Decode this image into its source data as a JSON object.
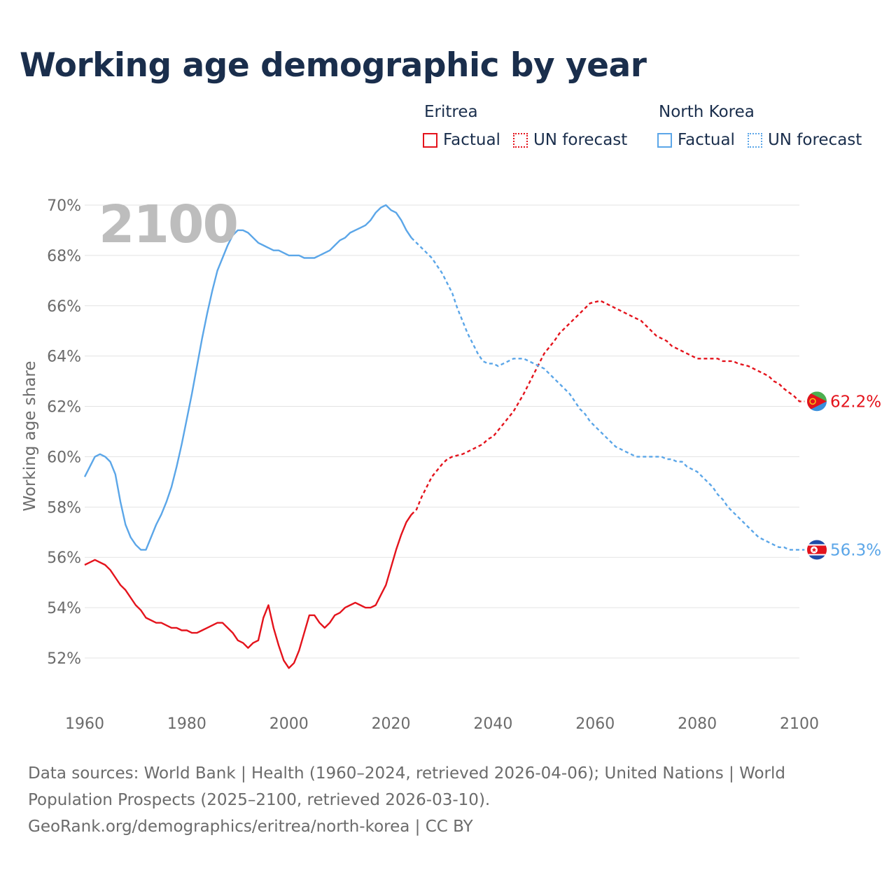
{
  "title": "Working age demographic by year",
  "year_overlay": "2100",
  "legend": [
    {
      "group": "Eritrea",
      "color": "#e4131c",
      "factual_label": "Factual",
      "forecast_label": "UN forecast"
    },
    {
      "group": "North Korea",
      "color": "#5ba6e8",
      "factual_label": "Factual",
      "forecast_label": "UN forecast"
    }
  ],
  "footer": {
    "sources": "Data sources: World Bank | Health (1960–2024, retrieved 2026-04-06); United Nations | World Population Prospects (2025–2100, retrieved 2026-03-10).",
    "credit": "GeoRank.org/demographics/eritrea/north-korea | CC BY"
  },
  "chart_data": {
    "type": "line",
    "title": "Working age demographic by year",
    "xlabel": "",
    "ylabel": "Working age share",
    "xlim": [
      1960,
      2100
    ],
    "ylim": [
      50.5,
      71
    ],
    "x_ticks": [
      1960,
      1980,
      2000,
      2020,
      2040,
      2060,
      2080,
      2100
    ],
    "y_ticks": [
      52,
      54,
      56,
      58,
      60,
      62,
      64,
      66,
      68,
      70
    ],
    "y_tick_labels": [
      "52%",
      "54%",
      "56%",
      "58%",
      "60%",
      "62%",
      "64%",
      "66%",
      "68%",
      "70%"
    ],
    "grid": "horizontal",
    "factual_range": [
      1960,
      2024
    ],
    "forecast_range": [
      2024,
      2100
    ],
    "series": [
      {
        "name": "Eritrea",
        "color": "#e4131c",
        "end_label": "62.2%",
        "flag": "eritrea-flag",
        "points": [
          [
            1960,
            55.7
          ],
          [
            1962,
            55.9
          ],
          [
            1964,
            55.7
          ],
          [
            1965,
            55.5
          ],
          [
            1966,
            55.2
          ],
          [
            1967,
            54.9
          ],
          [
            1968,
            54.7
          ],
          [
            1970,
            54.1
          ],
          [
            1971,
            53.9
          ],
          [
            1972,
            53.6
          ],
          [
            1974,
            53.4
          ],
          [
            1975,
            53.4
          ],
          [
            1976,
            53.3
          ],
          [
            1977,
            53.2
          ],
          [
            1978,
            53.2
          ],
          [
            1979,
            53.1
          ],
          [
            1980,
            53.1
          ],
          [
            1981,
            53.0
          ],
          [
            1982,
            53.0
          ],
          [
            1983,
            53.1
          ],
          [
            1984,
            53.2
          ],
          [
            1986,
            53.4
          ],
          [
            1987,
            53.4
          ],
          [
            1988,
            53.2
          ],
          [
            1989,
            53.0
          ],
          [
            1990,
            52.7
          ],
          [
            1991,
            52.6
          ],
          [
            1992,
            52.4
          ],
          [
            1993,
            52.6
          ],
          [
            1994,
            52.7
          ],
          [
            1995,
            53.6
          ],
          [
            1996,
            54.1
          ],
          [
            1997,
            53.2
          ],
          [
            1998,
            52.5
          ],
          [
            1999,
            51.9
          ],
          [
            2000,
            51.6
          ],
          [
            2001,
            51.8
          ],
          [
            2002,
            52.3
          ],
          [
            2003,
            53.0
          ],
          [
            2004,
            53.7
          ],
          [
            2005,
            53.7
          ],
          [
            2006,
            53.4
          ],
          [
            2007,
            53.2
          ],
          [
            2008,
            53.4
          ],
          [
            2009,
            53.7
          ],
          [
            2010,
            53.8
          ],
          [
            2011,
            54.0
          ],
          [
            2012,
            54.1
          ],
          [
            2013,
            54.2
          ],
          [
            2014,
            54.1
          ],
          [
            2015,
            54.0
          ],
          [
            2016,
            54.0
          ],
          [
            2017,
            54.1
          ],
          [
            2018,
            54.5
          ],
          [
            2019,
            54.9
          ],
          [
            2020,
            55.6
          ],
          [
            2021,
            56.3
          ],
          [
            2022,
            56.9
          ],
          [
            2023,
            57.4
          ],
          [
            2024,
            57.7
          ],
          [
            2025,
            57.9
          ],
          [
            2026,
            58.4
          ],
          [
            2027,
            58.8
          ],
          [
            2028,
            59.2
          ],
          [
            2030,
            59.7
          ],
          [
            2031,
            59.9
          ],
          [
            2032,
            60.0
          ],
          [
            2034,
            60.1
          ],
          [
            2035,
            60.2
          ],
          [
            2036,
            60.3
          ],
          [
            2038,
            60.5
          ],
          [
            2039,
            60.7
          ],
          [
            2040,
            60.8
          ],
          [
            2042,
            61.3
          ],
          [
            2044,
            61.8
          ],
          [
            2046,
            62.5
          ],
          [
            2048,
            63.3
          ],
          [
            2050,
            64.1
          ],
          [
            2052,
            64.6
          ],
          [
            2053,
            64.9
          ],
          [
            2055,
            65.3
          ],
          [
            2057,
            65.7
          ],
          [
            2058,
            65.9
          ],
          [
            2059,
            66.1
          ],
          [
            2061,
            66.2
          ],
          [
            2062,
            66.1
          ],
          [
            2064,
            65.9
          ],
          [
            2066,
            65.7
          ],
          [
            2068,
            65.5
          ],
          [
            2069,
            65.4
          ],
          [
            2070,
            65.2
          ],
          [
            2071,
            65.0
          ],
          [
            2072,
            64.8
          ],
          [
            2074,
            64.6
          ],
          [
            2075,
            64.4
          ],
          [
            2077,
            64.2
          ],
          [
            2079,
            64.0
          ],
          [
            2080,
            63.9
          ],
          [
            2082,
            63.9
          ],
          [
            2084,
            63.9
          ],
          [
            2085,
            63.8
          ],
          [
            2087,
            63.8
          ],
          [
            2088,
            63.7
          ],
          [
            2090,
            63.6
          ],
          [
            2092,
            63.4
          ],
          [
            2094,
            63.2
          ],
          [
            2095,
            63.0
          ],
          [
            2096,
            62.9
          ],
          [
            2097,
            62.7
          ],
          [
            2099,
            62.4
          ],
          [
            2100,
            62.2
          ],
          [
            2101,
            62.2
          ]
        ]
      },
      {
        "name": "North Korea",
        "color": "#5ba6e8",
        "end_label": "56.3%",
        "flag": "north-korea-flag",
        "points": [
          [
            1960,
            59.2
          ],
          [
            1961,
            59.6
          ],
          [
            1962,
            60.0
          ],
          [
            1963,
            60.1
          ],
          [
            1964,
            60.0
          ],
          [
            1965,
            59.8
          ],
          [
            1966,
            59.3
          ],
          [
            1967,
            58.2
          ],
          [
            1968,
            57.3
          ],
          [
            1969,
            56.8
          ],
          [
            1970,
            56.5
          ],
          [
            1971,
            56.3
          ],
          [
            1972,
            56.3
          ],
          [
            1973,
            56.8
          ],
          [
            1974,
            57.3
          ],
          [
            1975,
            57.7
          ],
          [
            1976,
            58.2
          ],
          [
            1977,
            58.8
          ],
          [
            1978,
            59.6
          ],
          [
            1979,
            60.5
          ],
          [
            1980,
            61.5
          ],
          [
            1981,
            62.5
          ],
          [
            1982,
            63.6
          ],
          [
            1983,
            64.7
          ],
          [
            1984,
            65.7
          ],
          [
            1985,
            66.6
          ],
          [
            1986,
            67.4
          ],
          [
            1987,
            67.9
          ],
          [
            1988,
            68.4
          ],
          [
            1989,
            68.8
          ],
          [
            1990,
            69.0
          ],
          [
            1991,
            69.0
          ],
          [
            1992,
            68.9
          ],
          [
            1993,
            68.7
          ],
          [
            1994,
            68.5
          ],
          [
            1995,
            68.4
          ],
          [
            1996,
            68.3
          ],
          [
            1997,
            68.2
          ],
          [
            1998,
            68.2
          ],
          [
            1999,
            68.1
          ],
          [
            2000,
            68.0
          ],
          [
            2001,
            68.0
          ],
          [
            2002,
            68.0
          ],
          [
            2003,
            67.9
          ],
          [
            2004,
            67.9
          ],
          [
            2005,
            67.9
          ],
          [
            2006,
            68.0
          ],
          [
            2007,
            68.1
          ],
          [
            2008,
            68.2
          ],
          [
            2009,
            68.4
          ],
          [
            2010,
            68.6
          ],
          [
            2011,
            68.7
          ],
          [
            2012,
            68.9
          ],
          [
            2013,
            69.0
          ],
          [
            2014,
            69.1
          ],
          [
            2015,
            69.2
          ],
          [
            2016,
            69.4
          ],
          [
            2017,
            69.7
          ],
          [
            2018,
            69.9
          ],
          [
            2019,
            70.0
          ],
          [
            2020,
            69.8
          ],
          [
            2021,
            69.7
          ],
          [
            2022,
            69.4
          ],
          [
            2023,
            69.0
          ],
          [
            2024,
            68.7
          ],
          [
            2025,
            68.5
          ],
          [
            2026,
            68.3
          ],
          [
            2027,
            68.1
          ],
          [
            2028,
            67.9
          ],
          [
            2029,
            67.6
          ],
          [
            2030,
            67.3
          ],
          [
            2031,
            66.9
          ],
          [
            2032,
            66.5
          ],
          [
            2033,
            65.9
          ],
          [
            2034,
            65.4
          ],
          [
            2035,
            64.9
          ],
          [
            2036,
            64.5
          ],
          [
            2037,
            64.1
          ],
          [
            2038,
            63.8
          ],
          [
            2039,
            63.7
          ],
          [
            2040,
            63.7
          ],
          [
            2041,
            63.6
          ],
          [
            2042,
            63.7
          ],
          [
            2043,
            63.8
          ],
          [
            2044,
            63.9
          ],
          [
            2045,
            63.9
          ],
          [
            2046,
            63.9
          ],
          [
            2047,
            63.8
          ],
          [
            2048,
            63.7
          ],
          [
            2049,
            63.6
          ],
          [
            2050,
            63.5
          ],
          [
            2051,
            63.3
          ],
          [
            2052,
            63.1
          ],
          [
            2053,
            62.9
          ],
          [
            2054,
            62.7
          ],
          [
            2055,
            62.5
          ],
          [
            2056,
            62.2
          ],
          [
            2057,
            61.9
          ],
          [
            2058,
            61.7
          ],
          [
            2059,
            61.4
          ],
          [
            2060,
            61.2
          ],
          [
            2061,
            61.0
          ],
          [
            2062,
            60.8
          ],
          [
            2063,
            60.6
          ],
          [
            2064,
            60.4
          ],
          [
            2065,
            60.3
          ],
          [
            2066,
            60.2
          ],
          [
            2067,
            60.1
          ],
          [
            2068,
            60.0
          ],
          [
            2069,
            60.0
          ],
          [
            2070,
            60.0
          ],
          [
            2071,
            60.0
          ],
          [
            2072,
            60.0
          ],
          [
            2073,
            60.0
          ],
          [
            2074,
            59.9
          ],
          [
            2075,
            59.9
          ],
          [
            2076,
            59.8
          ],
          [
            2077,
            59.8
          ],
          [
            2078,
            59.6
          ],
          [
            2079,
            59.5
          ],
          [
            2080,
            59.4
          ],
          [
            2081,
            59.2
          ],
          [
            2082,
            59.0
          ],
          [
            2083,
            58.8
          ],
          [
            2084,
            58.5
          ],
          [
            2085,
            58.3
          ],
          [
            2086,
            58.0
          ],
          [
            2087,
            57.8
          ],
          [
            2088,
            57.6
          ],
          [
            2089,
            57.4
          ],
          [
            2090,
            57.2
          ],
          [
            2091,
            57.0
          ],
          [
            2092,
            56.8
          ],
          [
            2093,
            56.7
          ],
          [
            2094,
            56.6
          ],
          [
            2095,
            56.5
          ],
          [
            2096,
            56.4
          ],
          [
            2097,
            56.4
          ],
          [
            2098,
            56.3
          ],
          [
            2099,
            56.3
          ],
          [
            2100,
            56.3
          ],
          [
            2101,
            56.3
          ]
        ]
      }
    ]
  }
}
